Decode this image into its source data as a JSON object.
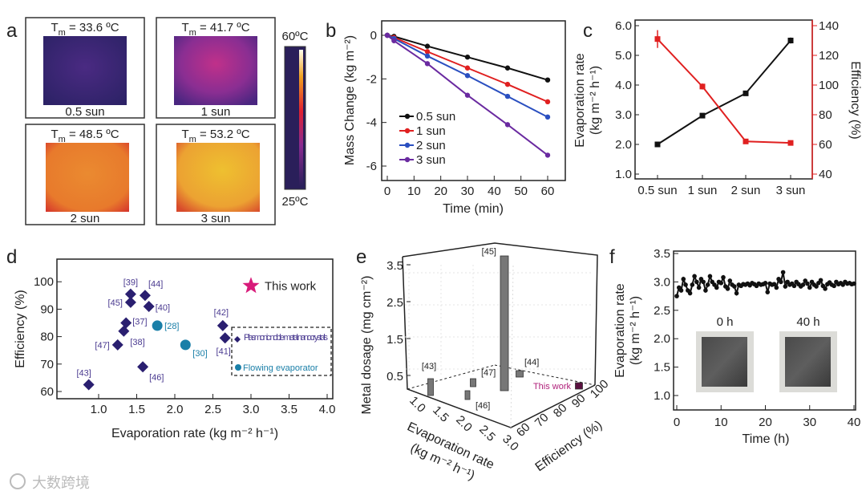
{
  "panel_labels": {
    "a": "a",
    "b": "b",
    "c": "c",
    "d": "d",
    "e": "e",
    "f": "f"
  },
  "watermark": "大数跨境",
  "chart_data": [
    {
      "panel": "a",
      "type": "heatmap",
      "images": [
        {
          "temp_label": "T",
          "temp_sub": "m",
          "temp_value": " = 33.6 ºC",
          "caption": "0.5 sun"
        },
        {
          "temp_label": "T",
          "temp_sub": "m",
          "temp_value": " = 41.7 ºC",
          "caption": "1 sun"
        },
        {
          "temp_label": "T",
          "temp_sub": "m",
          "temp_value": " = 48.5 ºC",
          "caption": "2 sun"
        },
        {
          "temp_label": "T",
          "temp_sub": "m",
          "temp_value": " = 53.2 ºC",
          "caption": "3 sun"
        }
      ],
      "colorbar": {
        "max_label": "60ºC",
        "min_label": "25ºC"
      }
    },
    {
      "panel": "b",
      "type": "line",
      "xlabel": "Time (min)",
      "ylabel": "Mass Change (kg m⁻²)",
      "xlim": [
        -2,
        66
      ],
      "ylim": [
        -6.8,
        0.6
      ],
      "xticks": [
        "0",
        "10",
        "20",
        "30",
        "40",
        "50",
        "60"
      ],
      "yticks": [
        "0",
        "-2",
        "-4",
        "-6"
      ],
      "x": [
        0,
        2.5,
        15,
        30,
        45,
        60
      ],
      "series": [
        {
          "name": "0.5 sun",
          "color": "#111111",
          "values": [
            0,
            -0.05,
            -0.5,
            -1.0,
            -1.5,
            -2.05
          ]
        },
        {
          "name": "1 sun",
          "color": "#e02020",
          "values": [
            0,
            -0.1,
            -0.75,
            -1.5,
            -2.25,
            -3.05
          ]
        },
        {
          "name": "2 sun",
          "color": "#2a4fc0",
          "values": [
            0,
            -0.15,
            -0.95,
            -1.85,
            -2.8,
            -3.75
          ]
        },
        {
          "name": "3 sun",
          "color": "#6a2aa0",
          "values": [
            0,
            -0.25,
            -1.3,
            -2.75,
            -4.1,
            -5.5
          ]
        }
      ],
      "legend": "center-left"
    },
    {
      "panel": "c",
      "type": "line",
      "categories": [
        "0.5 sun",
        "1 sun",
        "2 sun",
        "3 sun"
      ],
      "ylabel_left": "Evaporation rate",
      "ylabel_left_unit": "(kg m⁻² h⁻¹)",
      "ylabel_right": "Efficiency (%)",
      "ylim_left": [
        0.8,
        6.2
      ],
      "ylim_right": [
        40,
        140
      ],
      "yticks_left": [
        "1.0",
        "2.0",
        "3.0",
        "4.0",
        "5.0",
        "6.0"
      ],
      "yticks_right": [
        "40",
        "60",
        "80",
        "100",
        "120",
        "140"
      ],
      "series": [
        {
          "name": "Evaporation rate",
          "axis": "left",
          "color": "#111111",
          "values": [
            2.0,
            2.97,
            3.72,
            5.5
          ],
          "errors": [
            0.08,
            0.06,
            0.04,
            0.1
          ]
        },
        {
          "name": "Efficiency",
          "axis": "right",
          "color": "#e02020",
          "values": [
            131,
            99,
            62,
            61
          ],
          "errors": [
            6,
            2,
            1,
            1
          ]
        }
      ]
    },
    {
      "panel": "d",
      "type": "scatter",
      "xlabel": "Evaporation rate (kg m⁻² h⁻¹)",
      "ylabel": "Efficiency (%)",
      "xlim": [
        0.55,
        4.1
      ],
      "ylim": [
        58,
        107
      ],
      "xticks": [
        "1.0",
        "1.5",
        "2.0",
        "2.5",
        "3.0",
        "3.5",
        "4.0"
      ],
      "yticks": [
        "60",
        "70",
        "80",
        "90",
        "100"
      ],
      "series": [
        {
          "name": "Plasmonic noble metal nanocrystals",
          "color": "#2a1f70",
          "marker": "diamond",
          "points": [
            {
              "label": "[39]",
              "x": 1.42,
              "y": 95.5
            },
            {
              "label": "[45]",
              "x": 1.42,
              "y": 92.5
            },
            {
              "label": "[44]",
              "x": 1.61,
              "y": 95
            },
            {
              "label": "[40]",
              "x": 1.66,
              "y": 91
            },
            {
              "label": "[37]",
              "x": 1.36,
              "y": 85
            },
            {
              "label": "[38]",
              "x": 1.33,
              "y": 82
            },
            {
              "label": "[47]",
              "x": 1.25,
              "y": 77
            },
            {
              "label": "[46]",
              "x": 1.58,
              "y": 69
            },
            {
              "label": "[43]",
              "x": 0.87,
              "y": 62.5
            },
            {
              "label": "[42]",
              "x": 2.63,
              "y": 84
            },
            {
              "label": "[41]",
              "x": 2.66,
              "y": 79.5
            }
          ]
        },
        {
          "name": "Flowing evaporator",
          "color": "#1a7fa8",
          "marker": "circle",
          "points": [
            {
              "label": "[28]",
              "x": 1.77,
              "y": 84
            },
            {
              "label": "[30]",
              "x": 2.14,
              "y": 77
            }
          ]
        },
        {
          "name": "This work",
          "color": "#d81b7a",
          "marker": "star",
          "points": [
            {
              "label": "This work",
              "x": 3.0,
              "y": 98.5
            }
          ]
        }
      ],
      "legend": "right"
    },
    {
      "panel": "e",
      "type": "bar",
      "zlabel": "Metal dosage (mg cm⁻²)",
      "xlabel": "Evaporation rate",
      "xlabel_unit": "(kg m⁻² h⁻¹)",
      "ylabel": "Efficiency (%)",
      "zticks": [
        "0.5",
        "1.5",
        "2.5",
        "3.5"
      ],
      "xticks": [
        "1.0",
        "1.5",
        "2.0",
        "2.5",
        "3.0"
      ],
      "yticks": [
        "60",
        "70",
        "80",
        "90",
        "100"
      ],
      "bars": [
        {
          "label": "[45]",
          "x": 1.42,
          "y": 92.5,
          "z": 3.5
        },
        {
          "label": "[43]",
          "x": 0.87,
          "y": 62.5,
          "z": 0.35
        },
        {
          "label": "[47]",
          "x": 1.25,
          "y": 77,
          "z": 0.12
        },
        {
          "label": "[46]",
          "x": 1.58,
          "y": 69,
          "z": 0.12
        },
        {
          "label": "[44]",
          "x": 1.61,
          "y": 95,
          "z": 0.05
        },
        {
          "label": "This work",
          "x": 3.0,
          "y": 98.5,
          "z": 0.03
        }
      ]
    },
    {
      "panel": "f",
      "type": "line",
      "xlabel": "Time (h)",
      "ylabel": "Evaporation rate",
      "ylabel_unit": "(kg m⁻² h⁻¹)",
      "xlim": [
        -0.5,
        41.5
      ],
      "ylim": [
        0.75,
        3.55
      ],
      "xticks": [
        "0",
        "10",
        "20",
        "30",
        "40"
      ],
      "yticks": [
        "1.0",
        "1.5",
        "2.0",
        "2.5",
        "3.0",
        "3.5"
      ],
      "inset_labels": [
        "0 h",
        "40 h"
      ],
      "series": [
        {
          "name": "Evaporation rate",
          "color": "#111111",
          "step": 0.5,
          "values": [
            2.75,
            2.9,
            2.85,
            3.05,
            2.95,
            2.85,
            2.8,
            2.95,
            3.1,
            3.0,
            2.9,
            3.05,
            3.0,
            2.85,
            2.95,
            3.1,
            3.0,
            2.95,
            2.9,
            3.0,
            2.98,
            3.08,
            2.92,
            2.88,
            3.02,
            2.95,
            2.92,
            2.8,
            2.95,
            2.93,
            2.96,
            2.95,
            2.97,
            2.94,
            2.98,
            2.96,
            2.93,
            2.97,
            2.95,
            2.96,
            2.98,
            2.82,
            2.97,
            2.95,
            2.96,
            2.9,
            3.05,
            3.0,
            3.17,
            2.92,
            3.0,
            2.95,
            2.97,
            2.93,
            3.0,
            2.96,
            2.92,
            2.95,
            3.02,
            2.97,
            2.9,
            3.0,
            2.95,
            2.92,
            2.98,
            3.03,
            2.93,
            2.88,
            2.96,
            2.99,
            2.95,
            2.93,
            3.0,
            2.96,
            2.98,
            2.95,
            3.0,
            2.97,
            2.98,
            2.96,
            2.97
          ]
        }
      ]
    }
  ]
}
